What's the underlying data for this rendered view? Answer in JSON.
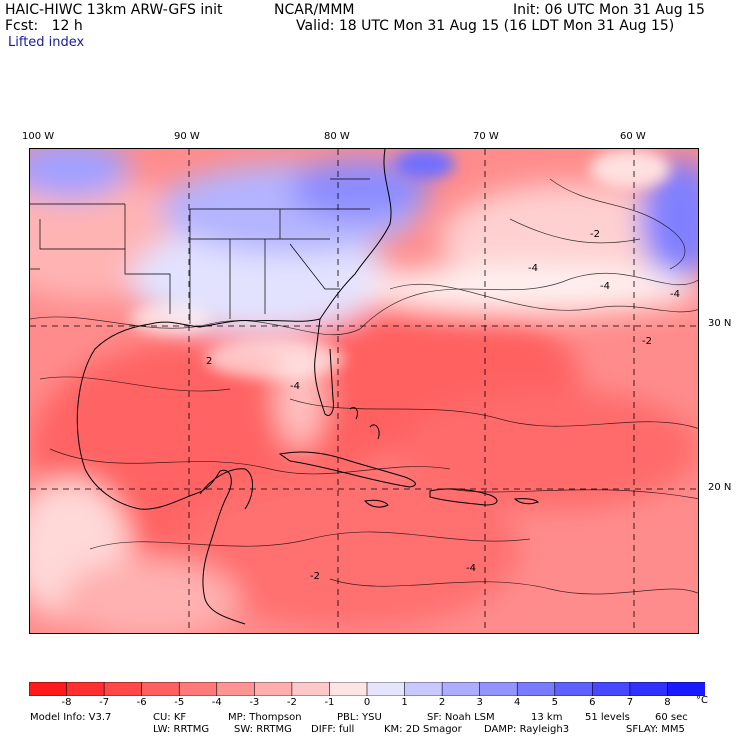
{
  "header": {
    "model": "HAIC-HIWC 13km ARW-GFS init",
    "org": "NCAR/MMM",
    "init": "Init: 06 UTC Mon 31 Aug 15",
    "fcst": "Fcst:   12 h",
    "valid": "Valid: 18 UTC Mon 31 Aug 15 (16 LDT Mon 31 Aug 15)",
    "field": "Lifted index"
  },
  "map": {
    "lon_labels": [
      "100 W",
      "90 W",
      "80 W",
      "70 W",
      "60 W"
    ],
    "lat_labels": [
      "30 N",
      "20 N"
    ],
    "contour_labels": [
      "-2",
      "-4",
      "-4",
      "-4",
      "-2",
      "2",
      "-4",
      "-4",
      "-2"
    ]
  },
  "colorbar": {
    "ticks": [
      "-8",
      "-7",
      "-6",
      "-5",
      "-4",
      "-3",
      "-2",
      "-1",
      "0",
      "1",
      "2",
      "3",
      "4",
      "5",
      "6",
      "7",
      "8"
    ],
    "unit": "°C",
    "colors": [
      "#ff1a1a",
      "#ff3030",
      "#ff4848",
      "#ff6060",
      "#ff7a7a",
      "#ff9494",
      "#ffadad",
      "#ffc8c8",
      "#ffe4e4",
      "#e4e4ff",
      "#c8c8ff",
      "#adadff",
      "#9494ff",
      "#7a7aff",
      "#6060ff",
      "#4848ff",
      "#3030ff",
      "#1a1aff"
    ]
  },
  "info": {
    "line1": [
      "Model Info: V3.7",
      "CU: KF",
      "MP: Thompson",
      "PBL: YSU",
      "SF: Noah LSM",
      "13 km",
      "51 levels",
      "60 sec"
    ],
    "line2": [
      "LW: RRTMG",
      "SW: RRTMG",
      "DIFF: full",
      "KM: 2D Smagor",
      "DAMP: Rayleigh3",
      "SFLAY: MM5"
    ]
  }
}
